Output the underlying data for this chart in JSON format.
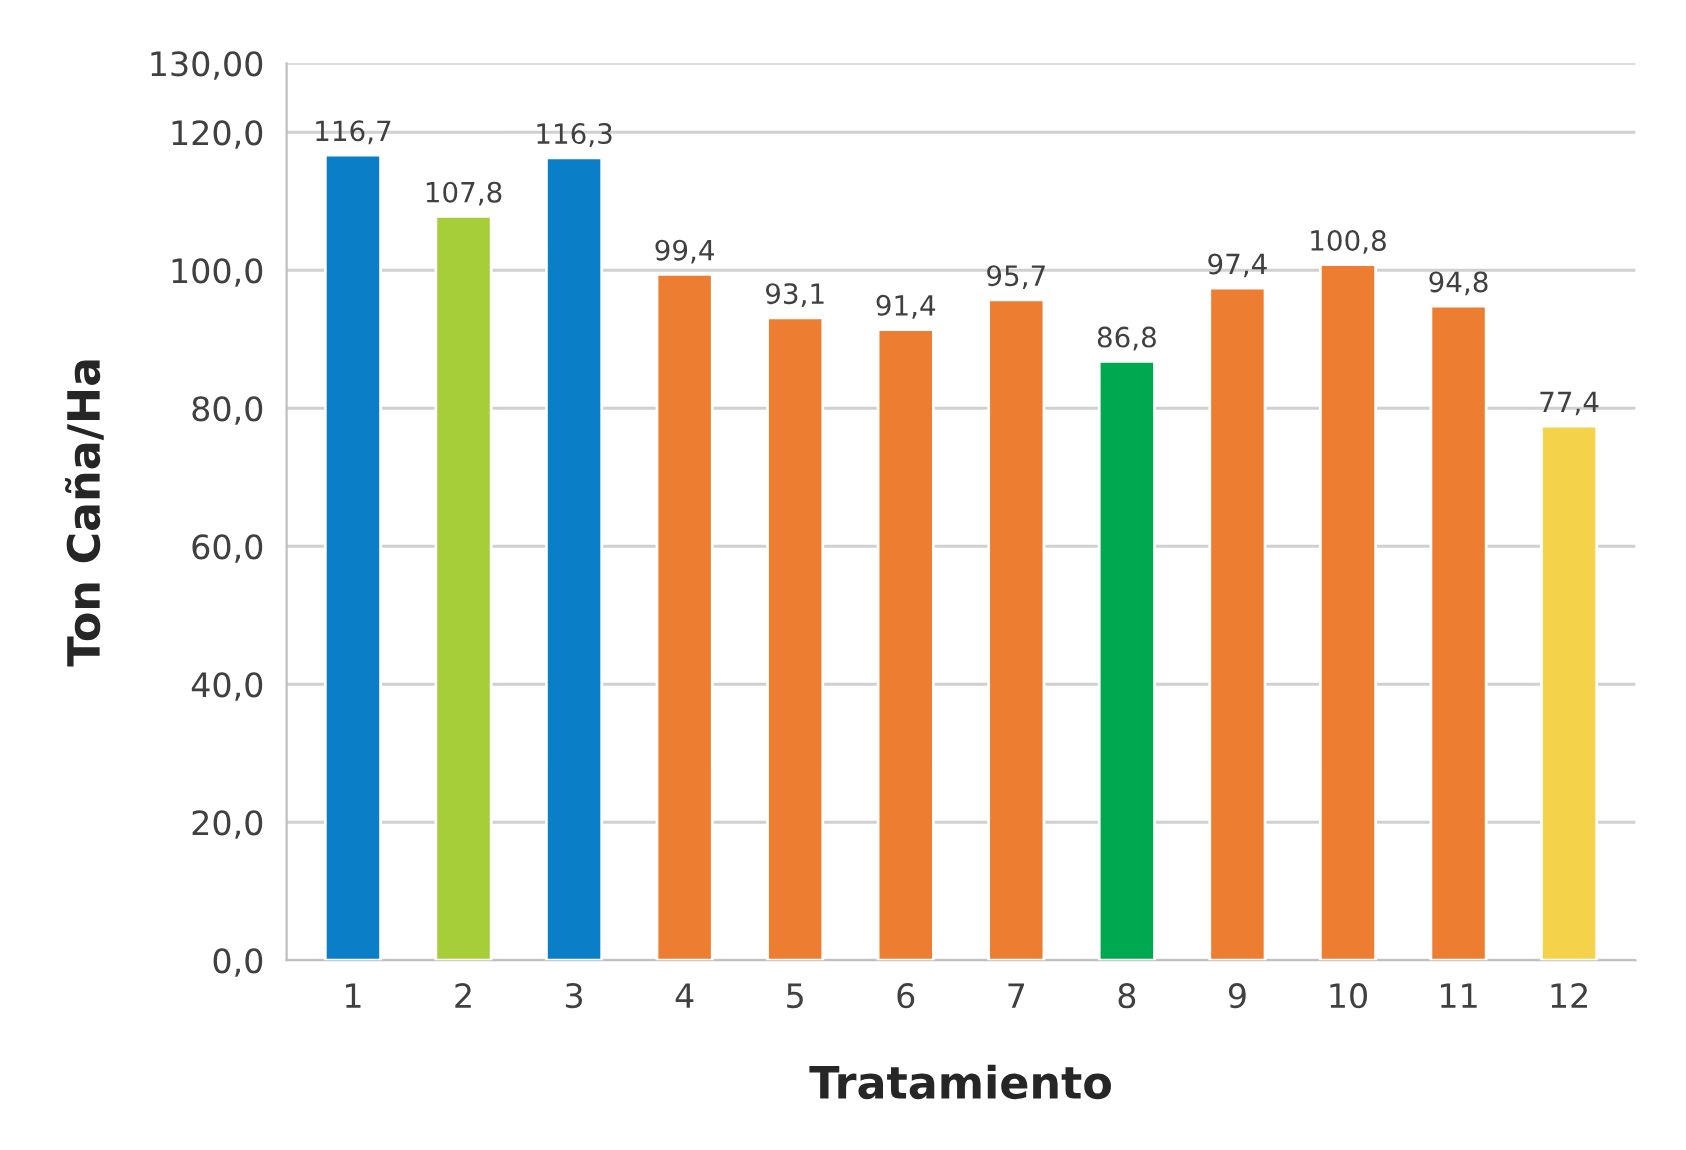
{
  "chart_data": {
    "type": "bar",
    "xlabel": "Tratamiento",
    "ylabel": "Ton Caña/Ha",
    "categories": [
      "1",
      "2",
      "3",
      "4",
      "5",
      "6",
      "7",
      "8",
      "9",
      "10",
      "11",
      "12"
    ],
    "values": [
      116.7,
      107.8,
      116.3,
      99.4,
      93.1,
      91.4,
      95.7,
      86.8,
      97.4,
      100.8,
      94.8,
      77.4
    ],
    "value_labels": [
      "116,7",
      "107,8",
      "116,3",
      "99,4",
      "93,1",
      "91,4",
      "95,7",
      "86,8",
      "97,4",
      "100,8",
      "94,8",
      "77,4"
    ],
    "colors": [
      "#0a7fc7",
      "#a6ce39",
      "#0a7fc7",
      "#ed7d31",
      "#ed7d31",
      "#ed7d31",
      "#ed7d31",
      "#00a84f",
      "#ed7d31",
      "#ed7d31",
      "#ed7d31",
      "#f4d34a"
    ],
    "ylim": [
      0,
      130
    ],
    "yticks": [
      {
        "value": 0,
        "label": "0,0"
      },
      {
        "value": 20,
        "label": "20,0"
      },
      {
        "value": 40,
        "label": "40,0"
      },
      {
        "value": 60,
        "label": "60,0"
      },
      {
        "value": 80,
        "label": "80,0"
      },
      {
        "value": 100,
        "label": "100,0"
      },
      {
        "value": 120,
        "label": "120,0"
      },
      {
        "value": 130,
        "label": "130,00"
      }
    ],
    "grid": "y",
    "legend": false
  }
}
